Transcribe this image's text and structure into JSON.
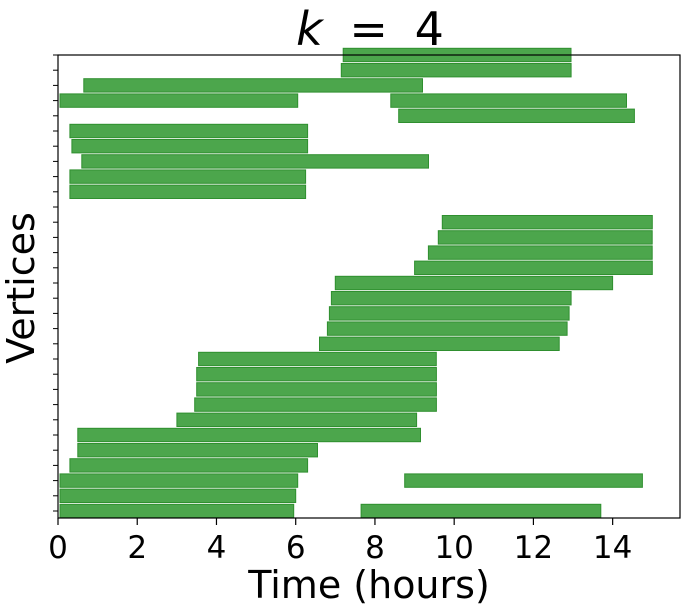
{
  "chart_data": {
    "type": "bar",
    "orientation": "horizontal-intervals",
    "title": "k = 4",
    "title_math": {
      "variable": "k",
      "operator": "=",
      "value": "4"
    },
    "xlabel": "Time (hours)",
    "ylabel": "Vertices",
    "xlim": [
      0,
      15.7
    ],
    "xticks": [
      0,
      2,
      4,
      6,
      8,
      10,
      12,
      14
    ],
    "ylim": [
      -0.5,
      29.5
    ],
    "y_tick_labels_shown": false,
    "grid": false,
    "legend": "none",
    "bar_color": "#4ca64c",
    "bar_edge_color": "#2f8f2f",
    "series": [
      {
        "intervals": [
          {
            "vertex": 0,
            "start": 0.05,
            "end": 5.95
          },
          {
            "vertex": 0,
            "start": 7.65,
            "end": 13.7
          },
          {
            "vertex": 1,
            "start": 0.05,
            "end": 6.0
          },
          {
            "vertex": 2,
            "start": 0.05,
            "end": 6.05
          },
          {
            "vertex": 2,
            "start": 8.75,
            "end": 14.75
          },
          {
            "vertex": 3,
            "start": 0.3,
            "end": 6.3
          },
          {
            "vertex": 4,
            "start": 0.5,
            "end": 6.55
          },
          {
            "vertex": 5,
            "start": 0.5,
            "end": 9.15
          },
          {
            "vertex": 6,
            "start": 3.0,
            "end": 9.05
          },
          {
            "vertex": 7,
            "start": 3.45,
            "end": 9.55
          },
          {
            "vertex": 8,
            "start": 3.5,
            "end": 9.55
          },
          {
            "vertex": 9,
            "start": 3.5,
            "end": 9.55
          },
          {
            "vertex": 10,
            "start": 3.55,
            "end": 9.55
          },
          {
            "vertex": 11,
            "start": 6.6,
            "end": 12.65
          },
          {
            "vertex": 12,
            "start": 6.8,
            "end": 12.85
          },
          {
            "vertex": 13,
            "start": 6.85,
            "end": 12.9
          },
          {
            "vertex": 14,
            "start": 6.9,
            "end": 12.95
          },
          {
            "vertex": 15,
            "start": 7.0,
            "end": 14.0
          },
          {
            "vertex": 16,
            "start": 9.0,
            "end": 15.0
          },
          {
            "vertex": 17,
            "start": 9.35,
            "end": 15.0
          },
          {
            "vertex": 18,
            "start": 9.6,
            "end": 15.0
          },
          {
            "vertex": 19,
            "start": 9.7,
            "end": 15.0
          },
          {
            "vertex": 21,
            "start": 0.3,
            "end": 6.25
          },
          {
            "vertex": 22,
            "start": 0.3,
            "end": 6.25
          },
          {
            "vertex": 23,
            "start": 0.6,
            "end": 9.35
          },
          {
            "vertex": 24,
            "start": 0.35,
            "end": 6.3
          },
          {
            "vertex": 25,
            "start": 0.3,
            "end": 6.3
          },
          {
            "vertex": 26,
            "start": 8.6,
            "end": 14.55
          },
          {
            "vertex": 27,
            "start": 8.4,
            "end": 14.35
          },
          {
            "vertex": 27,
            "start": 0.05,
            "end": 6.05
          },
          {
            "vertex": 28,
            "start": 0.65,
            "end": 9.2
          },
          {
            "vertex": 29,
            "start": 7.15,
            "end": 12.95
          },
          {
            "vertex": 30,
            "start": 7.2,
            "end": 12.95
          }
        ]
      }
    ]
  }
}
